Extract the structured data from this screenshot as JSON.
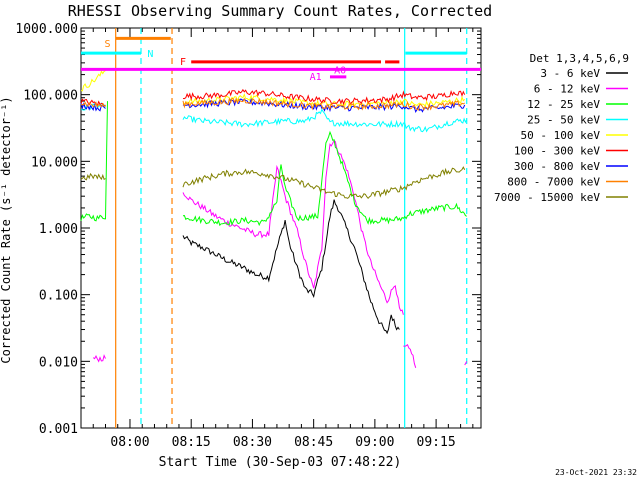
{
  "chart_data": {
    "type": "line",
    "title": "RHESSI Observing Summary Count Rates, Corrected",
    "xlabel": "Start Time (30-Sep-03 07:48:22)",
    "ylabel": "Corrected Count Rate (s⁻¹ detector⁻¹)",
    "yscale": "log",
    "xlim": [
      0,
      98
    ],
    "ylim": [
      0.001,
      1000
    ],
    "xticks": [
      {
        "t": 12,
        "label": "08:00"
      },
      {
        "t": 27,
        "label": "08:15"
      },
      {
        "t": 42,
        "label": "08:30"
      },
      {
        "t": 57,
        "label": "08:45"
      },
      {
        "t": 72,
        "label": "09:00"
      },
      {
        "t": 87,
        "label": "09:15"
      }
    ],
    "yticks": [
      {
        "v": 1000,
        "label": "1000.000"
      },
      {
        "v": 100,
        "label": "100.000"
      },
      {
        "v": 10,
        "label": "10.000"
      },
      {
        "v": 1,
        "label": "1.000"
      },
      {
        "v": 0.1,
        "label": "0.100"
      },
      {
        "v": 0.01,
        "label": "0.010"
      },
      {
        "v": 0.001,
        "label": "0.001"
      }
    ],
    "legend": {
      "title": "Det 1,3,4,5,6,9",
      "position": "right",
      "entries": [
        {
          "label": "3 - 6 keV",
          "color": "#000000"
        },
        {
          "label": "6 - 12 keV",
          "color": "#ff00ff"
        },
        {
          "label": "12 - 25 keV",
          "color": "#00ff00"
        },
        {
          "label": "25 - 50 keV",
          "color": "#00ffff"
        },
        {
          "label": "50 - 100 keV",
          "color": "#ffff00"
        },
        {
          "label": "100 - 300 keV",
          "color": "#ff0000"
        },
        {
          "label": "300 - 800 keV",
          "color": "#0000ff"
        },
        {
          "label": "800 - 7000 keV",
          "color": "#ff8000"
        },
        {
          "label": "7000 - 15000 keV",
          "color": "#808000"
        }
      ]
    },
    "series": [
      {
        "name": "3 - 6 keV",
        "color": "#000000",
        "segments": [
          [
            [
              25,
              0.75
            ],
            [
              27,
              0.6
            ],
            [
              30,
              0.5
            ],
            [
              33,
              0.4
            ],
            [
              36,
              0.32
            ],
            [
              40,
              0.25
            ],
            [
              43,
              0.2
            ],
            [
              46,
              0.18
            ],
            [
              48,
              0.5
            ],
            [
              50,
              1.3
            ],
            [
              51,
              0.6
            ],
            [
              53,
              0.25
            ],
            [
              55,
              0.12
            ],
            [
              57,
              0.1
            ],
            [
              59,
              0.25
            ],
            [
              61,
              1.5
            ],
            [
              62,
              2.5
            ],
            [
              63,
              2.0
            ],
            [
              65,
              1.0
            ],
            [
              67,
              0.5
            ],
            [
              69,
              0.2
            ],
            [
              71,
              0.08
            ],
            [
              73,
              0.04
            ],
            [
              75,
              0.025
            ],
            [
              76,
              0.05
            ],
            [
              77,
              0.035
            ],
            [
              78,
              0.03
            ]
          ]
        ]
      },
      {
        "name": "6 - 12 keV",
        "color": "#ff00ff",
        "segments": [
          [
            [
              25,
              3.5
            ],
            [
              27,
              2.6
            ],
            [
              30,
              2.0
            ],
            [
              33,
              1.5
            ],
            [
              36,
              1.2
            ],
            [
              40,
              0.95
            ],
            [
              43,
              0.8
            ],
            [
              46,
              0.8
            ],
            [
              47,
              2.5
            ],
            [
              48,
              8
            ],
            [
              49,
              5
            ],
            [
              50,
              3
            ],
            [
              53,
              0.9
            ],
            [
              55,
              0.3
            ],
            [
              57,
              0.12
            ],
            [
              59,
              0.5
            ],
            [
              60,
              6
            ],
            [
              61,
              18
            ],
            [
              62,
              20
            ],
            [
              63,
              15
            ],
            [
              65,
              8
            ],
            [
              67,
              3
            ],
            [
              69,
              0.8
            ],
            [
              71,
              0.3
            ],
            [
              73,
              0.15
            ],
            [
              75,
              0.08
            ],
            [
              77,
              0.15
            ],
            [
              78,
              0.06
            ],
            [
              79,
              0.05
            ]
          ],
          [
            [
              79,
              0.016
            ],
            [
              80,
              0.016
            ],
            [
              81,
              0.014
            ],
            [
              82,
              0.008
            ]
          ],
          [
            [
              3,
              0.011
            ],
            [
              6,
              0.011
            ]
          ],
          [
            [
              94,
              0.009
            ],
            [
              94.5,
              0.01
            ]
          ]
        ]
      },
      {
        "name": "12 - 25 keV",
        "color": "#00ff00",
        "segments": [
          [
            [
              0,
              1.4
            ],
            [
              2,
              1.5
            ],
            [
              4,
              1.4
            ],
            [
              6,
              1.5
            ],
            [
              6.5,
              80
            ]
          ],
          [
            [
              25,
              1.5
            ],
            [
              30,
              1.3
            ],
            [
              35,
              1.2
            ],
            [
              40,
              1.3
            ],
            [
              45,
              1.2
            ],
            [
              48,
              2.5
            ],
            [
              49,
              9
            ],
            [
              50,
              4
            ],
            [
              53,
              1.4
            ],
            [
              58,
              1.5
            ],
            [
              60,
              18
            ],
            [
              61,
              25
            ],
            [
              62,
              20
            ],
            [
              64,
              9
            ],
            [
              67,
              2.5
            ],
            [
              70,
              1.3
            ],
            [
              75,
              1.3
            ],
            [
              79,
              1.4
            ],
            [
              80,
              1.6
            ],
            [
              84,
              1.8
            ],
            [
              88,
              2.0
            ],
            [
              92,
              2.1
            ],
            [
              94.5,
              1.5
            ]
          ]
        ]
      },
      {
        "name": "25 - 50 keV",
        "color": "#00ffff",
        "segments": [
          [
            [
              0,
              60
            ],
            [
              2,
              65
            ],
            [
              4,
              70
            ],
            [
              6,
              65
            ]
          ],
          [
            [
              25,
              45
            ],
            [
              30,
              40
            ],
            [
              35,
              38
            ],
            [
              40,
              36
            ],
            [
              45,
              38
            ],
            [
              50,
              40
            ],
            [
              55,
              40
            ],
            [
              58,
              50
            ],
            [
              59,
              55
            ],
            [
              61,
              38
            ],
            [
              65,
              37
            ],
            [
              70,
              36
            ],
            [
              75,
              36
            ],
            [
              79,
              37
            ],
            [
              80,
              32
            ],
            [
              85,
              30
            ],
            [
              90,
              38
            ],
            [
              94.5,
              42
            ]
          ]
        ]
      },
      {
        "name": "50 - 100 keV",
        "color": "#ffff00",
        "segments": [
          [
            [
              0,
              120
            ],
            [
              3,
              160
            ],
            [
              6,
              230
            ]
          ],
          [
            [
              25,
              78
            ],
            [
              30,
              80
            ],
            [
              35,
              85
            ],
            [
              40,
              92
            ],
            [
              45,
              88
            ],
            [
              50,
              82
            ],
            [
              55,
              75
            ],
            [
              60,
              72
            ],
            [
              65,
              72
            ],
            [
              70,
              73
            ],
            [
              75,
              75
            ],
            [
              79,
              80
            ],
            [
              82,
              70
            ],
            [
              88,
              75
            ],
            [
              94,
              85
            ]
          ]
        ]
      },
      {
        "name": "100 - 300 keV",
        "color": "#ff0000",
        "segments": [
          [
            [
              0,
              80
            ],
            [
              3,
              75
            ],
            [
              6,
              70
            ]
          ],
          [
            [
              25,
              95
            ],
            [
              30,
              95
            ],
            [
              35,
              100
            ],
            [
              40,
              110
            ],
            [
              45,
              105
            ],
            [
              50,
              95
            ],
            [
              55,
              88
            ],
            [
              60,
              82
            ],
            [
              65,
              80
            ],
            [
              70,
              82
            ],
            [
              75,
              85
            ],
            [
              79,
              100
            ],
            [
              82,
              90
            ],
            [
              88,
              95
            ],
            [
              92,
              110
            ],
            [
              94,
              100
            ]
          ]
        ]
      },
      {
        "name": "300 - 800 keV",
        "color": "#0000ff",
        "segments": [
          [
            [
              0,
              70
            ],
            [
              3,
              65
            ],
            [
              6,
              62
            ]
          ],
          [
            [
              25,
              70
            ],
            [
              30,
              72
            ],
            [
              35,
              75
            ],
            [
              40,
              78
            ],
            [
              45,
              75
            ],
            [
              50,
              70
            ],
            [
              55,
              66
            ],
            [
              60,
              64
            ],
            [
              65,
              63
            ],
            [
              70,
              64
            ],
            [
              75,
              66
            ],
            [
              79,
              68
            ],
            [
              82,
              60
            ],
            [
              88,
              63
            ],
            [
              94,
              70
            ]
          ]
        ]
      },
      {
        "name": "800 - 7000 keV",
        "color": "#ff8000",
        "segments": [
          [
            [
              0,
              75
            ],
            [
              3,
              70
            ],
            [
              6,
              68
            ]
          ],
          [
            [
              25,
              73
            ],
            [
              30,
              75
            ],
            [
              35,
              78
            ],
            [
              40,
              82
            ],
            [
              45,
              78
            ],
            [
              50,
              73
            ],
            [
              55,
              69
            ],
            [
              60,
              66
            ],
            [
              65,
              66
            ],
            [
              70,
              67
            ],
            [
              75,
              69
            ],
            [
              79,
              72
            ],
            [
              82,
              65
            ],
            [
              88,
              68
            ],
            [
              94,
              75
            ]
          ]
        ]
      },
      {
        "name": "7000 - 15000 keV",
        "color": "#808000",
        "segments": [
          [
            [
              0,
              5.5
            ],
            [
              3,
              6
            ],
            [
              6,
              5.5
            ]
          ],
          [
            [
              25,
              4.5
            ],
            [
              30,
              5.5
            ],
            [
              35,
              6.5
            ],
            [
              40,
              7
            ],
            [
              45,
              6.5
            ],
            [
              50,
              5.5
            ],
            [
              55,
              4.5
            ],
            [
              60,
              3.5
            ],
            [
              65,
              3
            ],
            [
              70,
              3
            ],
            [
              75,
              3.5
            ],
            [
              79,
              4
            ],
            [
              82,
              5
            ],
            [
              86,
              6
            ],
            [
              90,
              7
            ],
            [
              94,
              7.5
            ]
          ]
        ]
      }
    ],
    "annotations": [
      {
        "label": "S",
        "t": 6.5,
        "y": 600,
        "color": "#ff8000"
      },
      {
        "label": "N",
        "t": 17,
        "y": 420,
        "color": "#00ffff"
      },
      {
        "label": "F",
        "t": 25,
        "y": 320,
        "color": "#ff0000"
      },
      {
        "label": "A0",
        "t": 63.5,
        "y": 240,
        "color": "#ff00ff"
      },
      {
        "label": "A1",
        "t": 57.5,
        "y": 190,
        "color": "#ff00ff"
      }
    ],
    "attribute_bars": [
      {
        "label": "S",
        "t0": 8.5,
        "t1": 22,
        "y": 700,
        "color": "#ff8000"
      },
      {
        "label": "N",
        "t0": 0,
        "t1": 14.7,
        "y": 420,
        "color": "#00ffff"
      },
      {
        "label": "N",
        "t0": 79.5,
        "t1": 94.5,
        "y": 420,
        "color": "#00ffff"
      },
      {
        "label": "F",
        "t0": 27,
        "t1": 73.5,
        "y": 310,
        "color": "#ff0000"
      },
      {
        "label": "F",
        "t0": 74.5,
        "t1": 78,
        "y": 310,
        "color": "#ff0000"
      },
      {
        "label": "A0",
        "t0": 0,
        "t1": 98,
        "y": 240,
        "color": "#ff00ff"
      },
      {
        "label": "A1",
        "t0": 61,
        "t1": 65,
        "y": 185,
        "color": "#ff00ff"
      }
    ],
    "vlines": [
      {
        "t": 8.5,
        "color": "#ff8000",
        "dash": false
      },
      {
        "t": 14.7,
        "color": "#00ffff",
        "dash": true
      },
      {
        "t": 22.3,
        "color": "#ff8000",
        "dash": true
      },
      {
        "t": 79.3,
        "color": "#00ffff",
        "dash": false
      },
      {
        "t": 94.5,
        "color": "#00ffff",
        "dash": true
      }
    ]
  },
  "footer": {
    "timestamp": "23-Oct-2021 23:32"
  }
}
